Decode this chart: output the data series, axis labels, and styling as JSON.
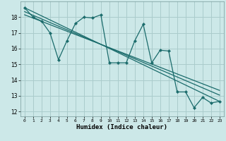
{
  "title": "",
  "xlabel": "Humidex (Indice chaleur)",
  "bg_color": "#cce8e8",
  "grid_color": "#aacccc",
  "line_color": "#1a6b6b",
  "xlim": [
    -0.5,
    23.5
  ],
  "ylim": [
    11.7,
    19.0
  ],
  "yticks": [
    12,
    13,
    14,
    15,
    16,
    17,
    18
  ],
  "xticks": [
    0,
    1,
    2,
    3,
    4,
    5,
    6,
    7,
    8,
    9,
    10,
    11,
    12,
    13,
    14,
    15,
    16,
    17,
    18,
    19,
    20,
    21,
    22,
    23
  ],
  "data_x": [
    0,
    1,
    2,
    3,
    4,
    5,
    6,
    7,
    8,
    9,
    10,
    11,
    12,
    13,
    14,
    15,
    16,
    17,
    18,
    19,
    20,
    21,
    22,
    23
  ],
  "data_y": [
    18.6,
    18.0,
    17.75,
    17.0,
    15.3,
    16.5,
    17.6,
    18.0,
    17.95,
    18.15,
    15.1,
    15.1,
    15.1,
    16.5,
    17.55,
    15.1,
    15.9,
    15.85,
    13.25,
    13.25,
    12.25,
    12.9,
    12.55,
    12.65
  ],
  "line1_x": [
    0,
    23
  ],
  "line1_y": [
    18.6,
    12.65
  ],
  "line2_x": [
    0,
    23
  ],
  "line2_y": [
    18.35,
    13.05
  ],
  "line3_x": [
    0,
    23
  ],
  "line3_y": [
    18.15,
    13.35
  ]
}
